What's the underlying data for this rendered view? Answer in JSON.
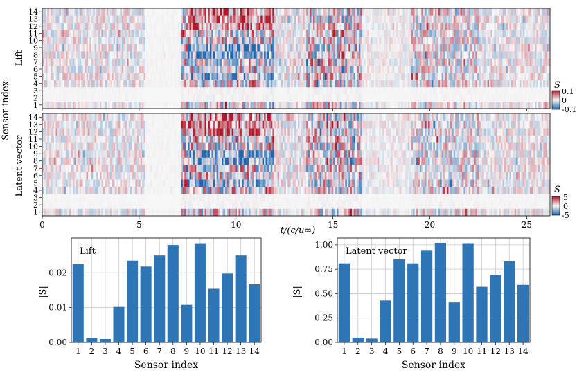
{
  "figure": {
    "sensor_axis_label": "Sensor index",
    "time_axis_label": "t/(c/u∞)"
  },
  "colors": {
    "bar": "#2e75b6",
    "neg": "#2166ac",
    "pos": "#b2182b",
    "neutral": "#f4f6f7"
  },
  "chart_data": [
    {
      "type": "heatmap",
      "title": "Lift",
      "ylabel": "Lift",
      "y_ticks": [
        "1",
        "2",
        "3",
        "4",
        "5",
        "6",
        "7",
        "8",
        "9",
        "10",
        "11",
        "12",
        "13",
        "14"
      ],
      "x_ticks": [
        "0",
        "5",
        "10",
        "15",
        "20",
        "25"
      ],
      "xlim": [
        0,
        26.2
      ],
      "colorbar": {
        "label": "S",
        "ticks": [
          "0.1",
          "0",
          "-0.1"
        ],
        "range": [
          -0.1,
          0.1
        ]
      }
    },
    {
      "type": "heatmap",
      "title": "Latent vector",
      "ylabel": "Latent vector",
      "y_ticks": [
        "1",
        "2",
        "3",
        "4",
        "5",
        "6",
        "7",
        "8",
        "9",
        "10",
        "11",
        "12",
        "13",
        "14"
      ],
      "x_ticks": [
        "0",
        "5",
        "10",
        "15",
        "20",
        "25"
      ],
      "xlabel": "t/(c/u∞)",
      "xlim": [
        0,
        26.2
      ],
      "colorbar": {
        "label": "S",
        "ticks": [
          "5",
          "0",
          "-5"
        ],
        "range": [
          -5,
          5
        ]
      }
    },
    {
      "type": "bar",
      "legend_text": "Lift",
      "ylabel": "|S|",
      "xlabel": "Sensor index",
      "categories": [
        "1",
        "2",
        "3",
        "4",
        "5",
        "6",
        "7",
        "8",
        "9",
        "10",
        "11",
        "12",
        "13",
        "14"
      ],
      "values": [
        0.0225,
        0.0013,
        0.001,
        0.0102,
        0.0235,
        0.0218,
        0.025,
        0.028,
        0.0108,
        0.0283,
        0.0154,
        0.0198,
        0.025,
        0.0167
      ],
      "ylim": [
        0,
        0.03
      ],
      "y_ticks": [
        "0.00",
        "0.01",
        "0.02"
      ],
      "grid": true
    },
    {
      "type": "bar",
      "legend_text": "Latent vector",
      "ylabel": "|S|",
      "xlabel": "Sensor index",
      "categories": [
        "1",
        "2",
        "3",
        "4",
        "5",
        "6",
        "7",
        "8",
        "9",
        "10",
        "11",
        "12",
        "13",
        "14"
      ],
      "values": [
        0.81,
        0.05,
        0.04,
        0.43,
        0.85,
        0.81,
        0.94,
        1.02,
        0.41,
        1.01,
        0.57,
        0.69,
        0.83,
        0.59
      ],
      "ylim": [
        0,
        1.07
      ],
      "y_ticks": [
        "0.00",
        "0.25",
        "0.50",
        "0.75",
        "1.00"
      ],
      "grid": true
    }
  ]
}
